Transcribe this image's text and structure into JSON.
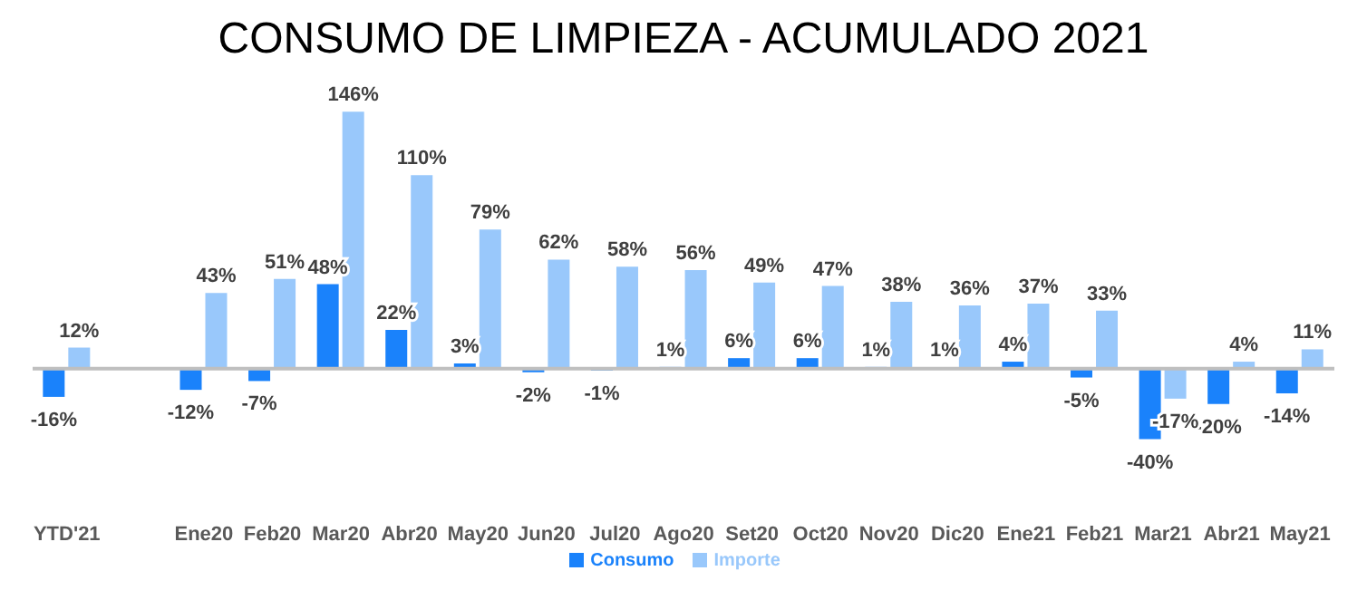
{
  "chart_data": {
    "type": "bar",
    "title": "CONSUMO DE LIMPIEZA - ACUMULADO 2021",
    "categories": [
      "YTD'21",
      null,
      "Ene20",
      "Feb20",
      "Mar20",
      "Abr20",
      "May20",
      "Jun20",
      "Jul20",
      "Ago20",
      "Set20",
      "Oct20",
      "Nov20",
      "Dic20",
      "Ene21",
      "Feb21",
      "Mar21",
      "Abr21",
      "May21"
    ],
    "series": [
      {
        "name": "Consumo",
        "color": "#1a82fb",
        "values": [
          -16,
          null,
          -12,
          -7,
          48,
          22,
          3,
          -2,
          -1,
          1,
          6,
          6,
          1,
          1,
          4,
          -5,
          -40,
          -20,
          -14
        ],
        "value_labels": [
          "-16%",
          null,
          "-12%",
          "-7%",
          "48%",
          "22%",
          "3%",
          "-2%",
          "-1%",
          "1%",
          "6%",
          "6%",
          "1%",
          "1%",
          "4%",
          "-5%",
          "-40%",
          "-20%",
          "-14%"
        ]
      },
      {
        "name": "Importe",
        "color": "#99c8fb",
        "values": [
          12,
          null,
          43,
          51,
          146,
          110,
          79,
          62,
          58,
          56,
          49,
          47,
          38,
          36,
          37,
          33,
          -17,
          4,
          11
        ],
        "value_labels": [
          "12%",
          null,
          "43%",
          "51%",
          "146%",
          "110%",
          "79%",
          "62%",
          "58%",
          "56%",
          "49%",
          "47%",
          "38%",
          "36%",
          "37%",
          "33%",
          "-17%",
          "4%",
          "11%"
        ]
      }
    ],
    "legend": "bottom",
    "grid": false,
    "tick_labels": "x"
  }
}
